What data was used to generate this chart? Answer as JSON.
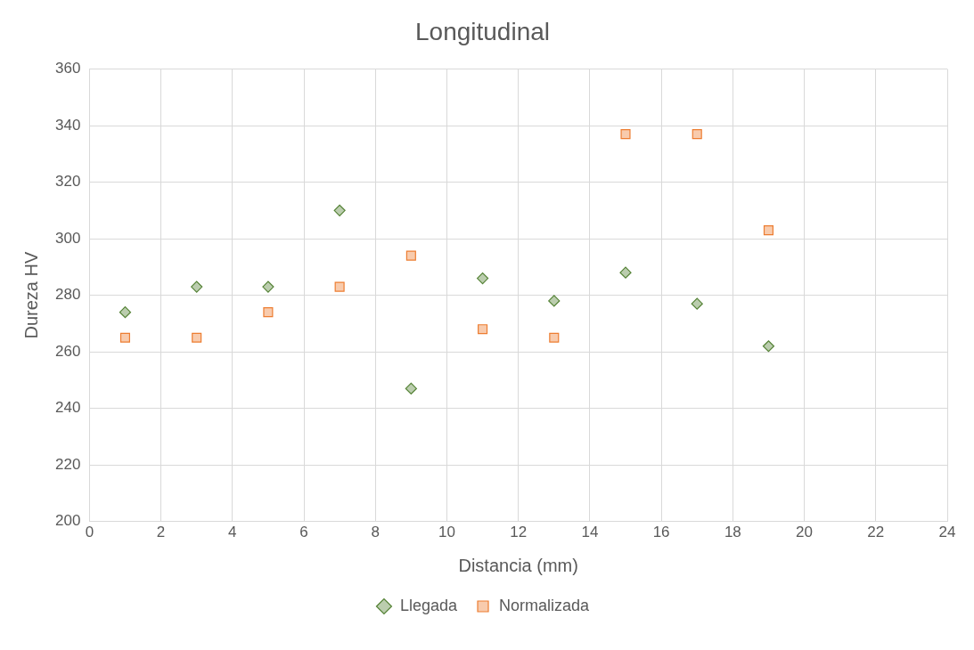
{
  "chart_data": {
    "type": "scatter",
    "title": "Longitudinal",
    "xlabel": "Distancia (mm)",
    "ylabel": "Dureza HV",
    "x": [
      1,
      3,
      5,
      7,
      9,
      11,
      13,
      15,
      17,
      19
    ],
    "series": [
      {
        "name": "Llegada",
        "color": "#548235",
        "marker": "diamond",
        "values": [
          274,
          283,
          283,
          310,
          247,
          286,
          278,
          288,
          277,
          262
        ]
      },
      {
        "name": "Normalizada",
        "color": "#ed7d31",
        "marker": "square",
        "values": [
          265,
          265,
          274,
          283,
          294,
          268,
          265,
          337,
          337,
          303
        ]
      }
    ],
    "xlim": [
      0,
      24
    ],
    "xticks": [
      0,
      2,
      4,
      6,
      8,
      10,
      12,
      14,
      16,
      18,
      20,
      22,
      24
    ],
    "ylim": [
      200,
      360
    ],
    "yticks": [
      200,
      220,
      240,
      260,
      280,
      300,
      320,
      340,
      360
    ],
    "grid": true,
    "legend": "bottom"
  }
}
